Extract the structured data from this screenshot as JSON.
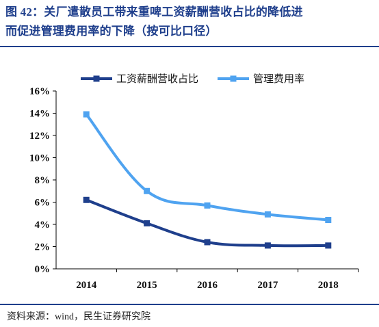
{
  "title": {
    "line1": "图 42：关厂遣散员工带来重啤工资薪酬营收占比的降低进",
    "line2": "而促进管理费用率的下降（按可比口径）"
  },
  "source": "资料来源：wind，民生证券研究院",
  "colors": {
    "title": "#1f3f8c",
    "series1": "#1f3f8c",
    "series2": "#4fa3f0"
  },
  "chart_data": {
    "type": "line",
    "title": "",
    "xlabel": "",
    "ylabel": "",
    "categories": [
      "2014",
      "2015",
      "2016",
      "2017",
      "2018"
    ],
    "ylim": [
      0,
      16
    ],
    "yticks": [
      "0%",
      "2%",
      "4%",
      "6%",
      "8%",
      "10%",
      "12%",
      "14%",
      "16%"
    ],
    "grid": false,
    "legend": "top",
    "series": [
      {
        "name": "工资薪酬营收占比",
        "values": [
          6.2,
          4.1,
          2.4,
          2.1,
          2.1
        ],
        "color": "#1f3f8c",
        "marker": "square"
      },
      {
        "name": "管理费用率",
        "values": [
          13.9,
          7.0,
          5.7,
          4.9,
          4.4
        ],
        "color": "#4fa3f0",
        "marker": "square"
      }
    ]
  }
}
